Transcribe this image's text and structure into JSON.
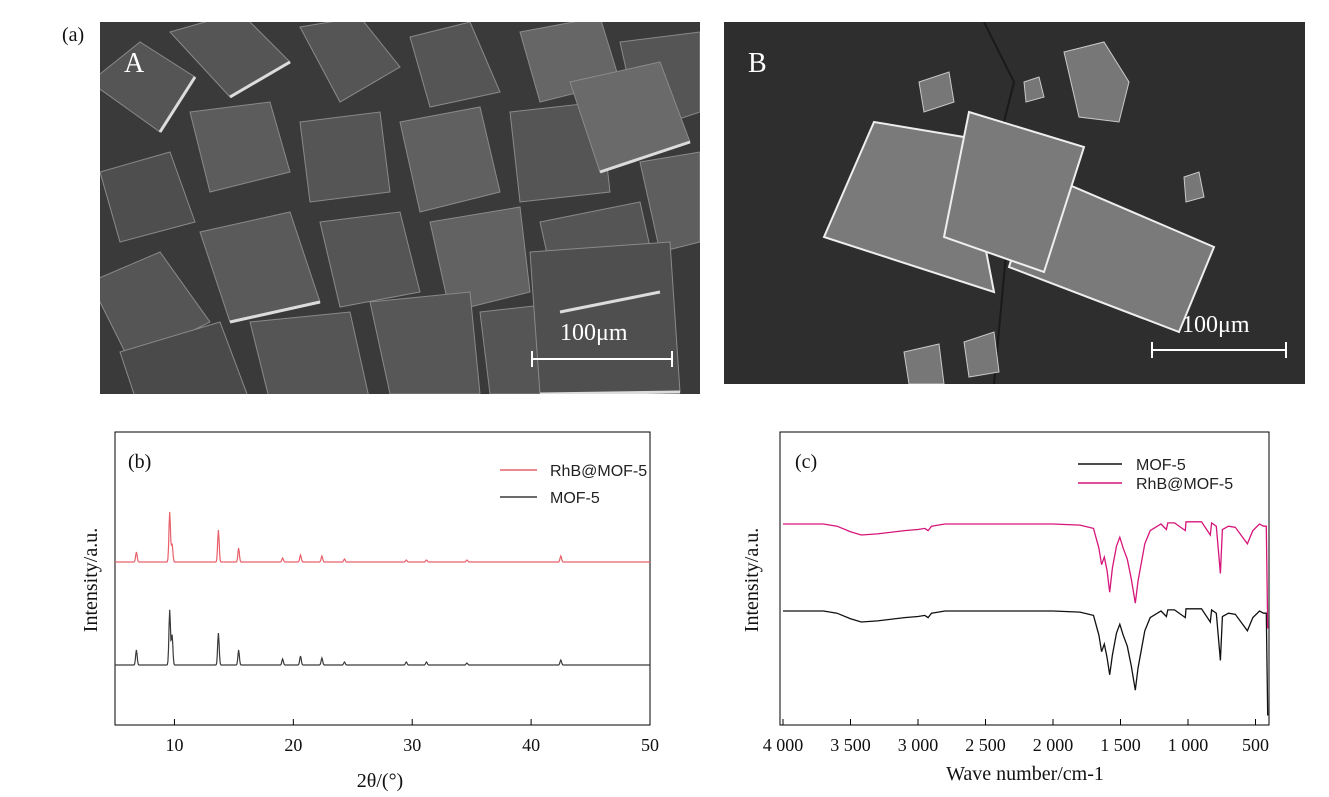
{
  "panel_labels": {
    "a": "(a)",
    "b": "(b)",
    "c": "(c)"
  },
  "sem": {
    "image_a": {
      "tag": "A",
      "scale_label": "100μm"
    },
    "image_b": {
      "tag": "B",
      "scale_label": "100μm"
    }
  },
  "colors": {
    "mof5": "#3a3a3a",
    "rhb_mof5_xrd": "#e8606a",
    "mof5_ir": "#111111",
    "rhb_mof5_ir": "#d6157a"
  },
  "chart_data": [
    {
      "id": "b",
      "type": "line",
      "title": "",
      "xlabel": "2θ/(°)",
      "ylabel": "Intensity/a.u.",
      "xlim": [
        5,
        50
      ],
      "xticks": [
        "10",
        "20",
        "30",
        "40",
        "50"
      ],
      "yticks": [],
      "legend_position": "top-right",
      "series": [
        {
          "name": "RhB@MOF-5",
          "offset": 1.0,
          "peaks": [
            [
              6.8,
              0.1
            ],
            [
              9.6,
              0.5
            ],
            [
              9.8,
              0.18
            ],
            [
              13.7,
              0.32
            ],
            [
              15.4,
              0.14
            ],
            [
              19.1,
              0.04
            ],
            [
              20.6,
              0.07
            ],
            [
              22.4,
              0.06
            ],
            [
              24.3,
              0.03
            ],
            [
              29.5,
              0.02
            ],
            [
              31.2,
              0.02
            ],
            [
              34.6,
              0.02
            ],
            [
              42.5,
              0.06
            ]
          ]
        },
        {
          "name": "MOF-5",
          "offset": 0.0,
          "peaks": [
            [
              6.8,
              0.15
            ],
            [
              9.6,
              0.55
            ],
            [
              9.8,
              0.3
            ],
            [
              13.7,
              0.32
            ],
            [
              15.4,
              0.15
            ],
            [
              19.1,
              0.06
            ],
            [
              20.6,
              0.09
            ],
            [
              22.4,
              0.07
            ],
            [
              24.3,
              0.03
            ],
            [
              29.5,
              0.03
            ],
            [
              31.2,
              0.03
            ],
            [
              34.6,
              0.02
            ],
            [
              42.5,
              0.05
            ]
          ]
        }
      ]
    },
    {
      "id": "c",
      "type": "line",
      "title": "",
      "xlabel": "Wave number/cm-1",
      "ylabel": "Intensity/a.u.",
      "xlim": [
        4000,
        400
      ],
      "xticks": [
        "4 000",
        "3 500",
        "3 000",
        "2 500",
        "2 000",
        "1 500",
        "1 000",
        "500"
      ],
      "legend_position": "top-right",
      "series": [
        {
          "name": "MOF-5",
          "points": [
            [
              4000,
              0.0
            ],
            [
              3700,
              0.0
            ],
            [
              3600,
              -0.02
            ],
            [
              3500,
              -0.07
            ],
            [
              3420,
              -0.1
            ],
            [
              3300,
              -0.09
            ],
            [
              3100,
              -0.06
            ],
            [
              3000,
              -0.05
            ],
            [
              2950,
              -0.04
            ],
            [
              2925,
              -0.06
            ],
            [
              2900,
              -0.02
            ],
            [
              2800,
              0.0
            ],
            [
              2500,
              0.0
            ],
            [
              2000,
              0.0
            ],
            [
              1800,
              -0.01
            ],
            [
              1700,
              -0.04
            ],
            [
              1660,
              -0.22
            ],
            [
              1640,
              -0.37
            ],
            [
              1620,
              -0.3
            ],
            [
              1600,
              -0.42
            ],
            [
              1580,
              -0.58
            ],
            [
              1560,
              -0.4
            ],
            [
              1530,
              -0.2
            ],
            [
              1505,
              -0.12
            ],
            [
              1480,
              -0.22
            ],
            [
              1450,
              -0.32
            ],
            [
              1420,
              -0.5
            ],
            [
              1390,
              -0.72
            ],
            [
              1370,
              -0.52
            ],
            [
              1320,
              -0.18
            ],
            [
              1280,
              -0.06
            ],
            [
              1200,
              0.0
            ],
            [
              1160,
              -0.05
            ],
            [
              1150,
              0.01
            ],
            [
              1100,
              0.01
            ],
            [
              1020,
              -0.06
            ],
            [
              1015,
              0.02
            ],
            [
              900,
              0.02
            ],
            [
              835,
              -0.1
            ],
            [
              825,
              0.01
            ],
            [
              790,
              -0.02
            ],
            [
              760,
              -0.45
            ],
            [
              745,
              -0.05
            ],
            [
              700,
              -0.02
            ],
            [
              650,
              -0.03
            ],
            [
              560,
              -0.18
            ],
            [
              520,
              -0.06
            ],
            [
              470,
              0.0
            ],
            [
              440,
              -0.02
            ],
            [
              420,
              -0.02
            ],
            [
              410,
              -0.95
            ]
          ]
        },
        {
          "name": "RhB@MOF-5",
          "points": [
            [
              4000,
              0.0
            ],
            [
              3700,
              0.0
            ],
            [
              3600,
              -0.02
            ],
            [
              3500,
              -0.07
            ],
            [
              3420,
              -0.1
            ],
            [
              3300,
              -0.09
            ],
            [
              3100,
              -0.06
            ],
            [
              3000,
              -0.05
            ],
            [
              2950,
              -0.04
            ],
            [
              2925,
              -0.06
            ],
            [
              2900,
              -0.02
            ],
            [
              2800,
              0.0
            ],
            [
              2500,
              0.0
            ],
            [
              2000,
              0.0
            ],
            [
              1800,
              -0.01
            ],
            [
              1700,
              -0.04
            ],
            [
              1660,
              -0.22
            ],
            [
              1640,
              -0.37
            ],
            [
              1620,
              -0.3
            ],
            [
              1600,
              -0.42
            ],
            [
              1580,
              -0.62
            ],
            [
              1560,
              -0.4
            ],
            [
              1530,
              -0.2
            ],
            [
              1505,
              -0.12
            ],
            [
              1480,
              -0.22
            ],
            [
              1450,
              -0.32
            ],
            [
              1420,
              -0.5
            ],
            [
              1390,
              -0.72
            ],
            [
              1370,
              -0.52
            ],
            [
              1320,
              -0.18
            ],
            [
              1280,
              -0.06
            ],
            [
              1200,
              0.0
            ],
            [
              1160,
              -0.05
            ],
            [
              1150,
              0.01
            ],
            [
              1100,
              0.01
            ],
            [
              1020,
              -0.06
            ],
            [
              1015,
              0.02
            ],
            [
              900,
              0.02
            ],
            [
              835,
              -0.1
            ],
            [
              825,
              0.01
            ],
            [
              790,
              -0.02
            ],
            [
              760,
              -0.45
            ],
            [
              745,
              -0.05
            ],
            [
              700,
              -0.02
            ],
            [
              650,
              -0.03
            ],
            [
              560,
              -0.18
            ],
            [
              520,
              -0.06
            ],
            [
              470,
              0.0
            ],
            [
              440,
              -0.02
            ],
            [
              420,
              -0.02
            ],
            [
              410,
              -0.95
            ]
          ]
        }
      ]
    }
  ]
}
